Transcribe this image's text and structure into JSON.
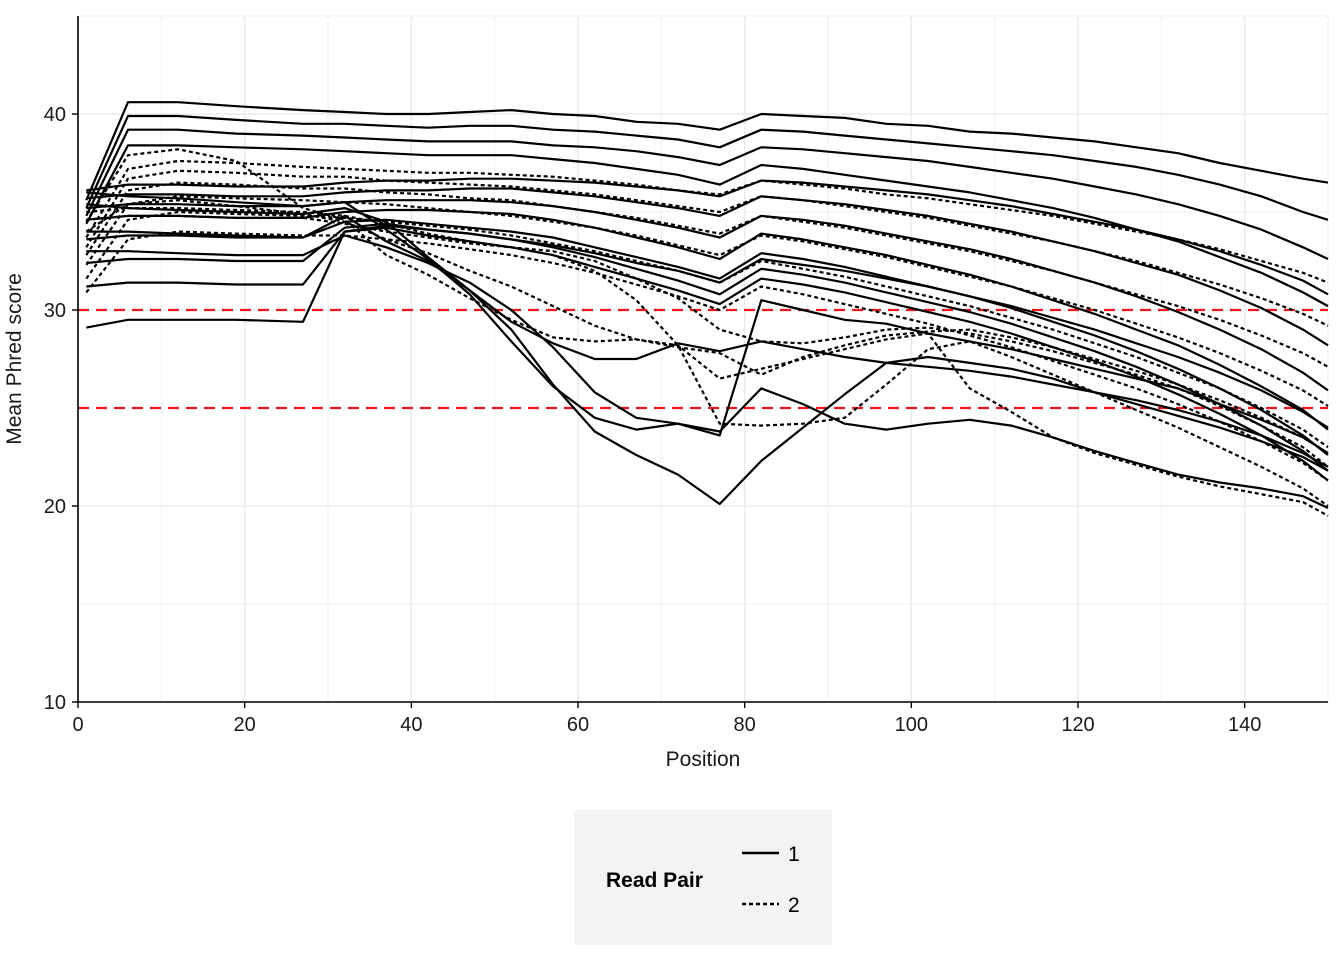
{
  "chart_data": {
    "type": "line",
    "title": "",
    "xlabel": "Position",
    "ylabel": "Mean Phred score",
    "xlim": [
      0,
      150
    ],
    "ylim": [
      10,
      45
    ],
    "x_ticks": [
      0,
      20,
      40,
      60,
      80,
      100,
      120,
      140
    ],
    "y_ticks": [
      10,
      20,
      30,
      40
    ],
    "grid": true,
    "legend": {
      "title": "Read Pair",
      "position": "bottom",
      "entries": [
        {
          "label": "1",
          "linestyle": "solid"
        },
        {
          "label": "2",
          "linestyle": "dashed"
        }
      ]
    },
    "reference_lines": [
      {
        "y": 30,
        "color": "#e8191c",
        "style": "dashed"
      },
      {
        "y": 25,
        "color": "#e8191c",
        "style": "dashed"
      }
    ],
    "x": [
      1,
      6,
      12,
      19,
      27,
      32,
      37,
      42,
      47,
      52,
      57,
      62,
      67,
      72,
      77,
      82,
      87,
      92,
      97,
      102,
      107,
      112,
      117,
      122,
      127,
      132,
      137,
      142,
      147,
      150
    ],
    "series": [
      {
        "read_pair": "1",
        "values": [
          35.6,
          40.6,
          40.6,
          40.4,
          40.2,
          40.1,
          40.0,
          40.0,
          40.1,
          40.2,
          40.0,
          39.9,
          39.6,
          39.5,
          39.2,
          40.0,
          39.9,
          39.8,
          39.5,
          39.4,
          39.1,
          39.0,
          38.8,
          38.6,
          38.3,
          38.0,
          37.5,
          37.1,
          36.7,
          36.5
        ]
      },
      {
        "read_pair": "1",
        "values": [
          35.2,
          39.9,
          39.9,
          39.7,
          39.5,
          39.5,
          39.4,
          39.3,
          39.4,
          39.4,
          39.2,
          39.1,
          38.9,
          38.7,
          38.3,
          39.2,
          39.1,
          38.9,
          38.7,
          38.5,
          38.3,
          38.1,
          37.9,
          37.6,
          37.3,
          36.9,
          36.4,
          35.8,
          35.0,
          34.6
        ]
      },
      {
        "read_pair": "1",
        "values": [
          34.8,
          39.2,
          39.2,
          39.0,
          38.9,
          38.8,
          38.7,
          38.6,
          38.6,
          38.6,
          38.4,
          38.3,
          38.1,
          37.8,
          37.4,
          38.3,
          38.2,
          38.0,
          37.8,
          37.6,
          37.3,
          37.0,
          36.7,
          36.3,
          35.9,
          35.4,
          34.8,
          34.1,
          33.2,
          32.6
        ]
      },
      {
        "read_pair": "1",
        "values": [
          34.4,
          38.4,
          38.4,
          38.3,
          38.2,
          38.1,
          38.0,
          37.9,
          37.9,
          37.9,
          37.7,
          37.5,
          37.2,
          36.9,
          36.4,
          37.4,
          37.2,
          36.9,
          36.6,
          36.3,
          36.0,
          35.6,
          35.2,
          34.7,
          34.1,
          33.5,
          32.7,
          31.9,
          30.9,
          30.2
        ]
      },
      {
        "read_pair": "1",
        "values": [
          36.1,
          36.4,
          36.4,
          36.3,
          36.3,
          36.5,
          36.6,
          36.6,
          36.7,
          36.7,
          36.6,
          36.5,
          36.3,
          36.1,
          35.8,
          36.6,
          36.5,
          36.3,
          36.1,
          35.9,
          35.6,
          35.3,
          34.9,
          34.5,
          34.1,
          33.6,
          33.0,
          32.3,
          31.5,
          30.8
        ]
      },
      {
        "read_pair": "1",
        "values": [
          35.7,
          35.9,
          35.9,
          35.8,
          35.8,
          36.0,
          36.1,
          36.1,
          36.2,
          36.2,
          36.0,
          35.8,
          35.5,
          35.2,
          34.8,
          35.8,
          35.6,
          35.4,
          35.1,
          34.8,
          34.4,
          34.0,
          33.5,
          33.0,
          32.4,
          31.8,
          31.0,
          30.1,
          29.0,
          28.2
        ]
      },
      {
        "read_pair": "1",
        "values": [
          35.2,
          35.4,
          35.4,
          35.3,
          35.3,
          35.5,
          35.6,
          35.6,
          35.6,
          35.5,
          35.3,
          35.0,
          34.6,
          34.2,
          33.7,
          34.8,
          34.6,
          34.3,
          33.9,
          33.5,
          33.1,
          32.6,
          32.0,
          31.4,
          30.7,
          29.9,
          29.0,
          28.0,
          26.8,
          25.9
        ]
      },
      {
        "read_pair": "1",
        "values": [
          34.6,
          34.8,
          34.8,
          34.7,
          34.7,
          35.0,
          35.1,
          35.1,
          35.0,
          34.9,
          34.6,
          34.2,
          33.7,
          33.2,
          32.6,
          33.9,
          33.6,
          33.2,
          32.8,
          32.3,
          31.8,
          31.2,
          30.5,
          29.8,
          29.0,
          28.2,
          27.2,
          26.1,
          24.9,
          23.9
        ]
      },
      {
        "read_pair": "1",
        "values": [
          33.6,
          33.8,
          33.8,
          33.7,
          33.7,
          34.5,
          34.6,
          34.4,
          34.2,
          34.0,
          33.7,
          33.2,
          32.7,
          32.2,
          31.6,
          32.9,
          32.6,
          32.2,
          31.7,
          31.2,
          30.7,
          30.1,
          29.4,
          28.7,
          27.9,
          27.0,
          26.0,
          24.9,
          23.6,
          22.6
        ]
      },
      {
        "read_pair": "1",
        "values": [
          32.4,
          32.6,
          32.6,
          32.5,
          32.5,
          34.2,
          34.4,
          34.1,
          33.9,
          33.6,
          33.2,
          32.7,
          32.1,
          31.5,
          30.8,
          32.1,
          31.8,
          31.4,
          30.9,
          30.4,
          29.9,
          29.3,
          28.6,
          27.9,
          27.1,
          26.2,
          25.2,
          24.1,
          22.8,
          21.8
        ]
      },
      {
        "read_pair": "1",
        "values": [
          31.2,
          31.4,
          31.4,
          31.3,
          31.3,
          34.0,
          34.2,
          33.8,
          33.5,
          33.2,
          32.8,
          32.2,
          31.6,
          31.0,
          30.3,
          31.6,
          31.3,
          30.9,
          30.4,
          29.9,
          29.4,
          28.8,
          28.1,
          27.4,
          26.6,
          25.7,
          24.7,
          23.6,
          22.3,
          21.3
        ]
      },
      {
        "read_pair": "1",
        "values": [
          29.1,
          29.5,
          29.5,
          29.5,
          29.4,
          34.0,
          34.3,
          34.1,
          33.9,
          33.6,
          33.3,
          32.9,
          32.4,
          32.0,
          31.4,
          32.6,
          32.3,
          32.0,
          31.6,
          31.2,
          30.7,
          30.2,
          29.6,
          29.0,
          28.3,
          27.6,
          26.8,
          25.9,
          24.8,
          24.0
        ]
      },
      {
        "read_pair": "1",
        "values": [
          36.0,
          35.8,
          35.7,
          35.5,
          35.3,
          35.5,
          34.1,
          32.6,
          30.8,
          28.4,
          26.1,
          24.5,
          23.9,
          24.2,
          23.6,
          30.5,
          30.0,
          29.5,
          29.3,
          28.8,
          28.4,
          28.0,
          27.5,
          27.0,
          26.5,
          26.0,
          25.2,
          24.4,
          23.5,
          22.7
        ]
      },
      {
        "read_pair": "1",
        "values": [
          35.4,
          35.2,
          35.1,
          35.0,
          34.9,
          35.2,
          34.5,
          32.7,
          31.0,
          29.0,
          26.2,
          23.8,
          22.6,
          21.6,
          20.1,
          22.3,
          24.0,
          25.7,
          27.3,
          27.6,
          27.3,
          27.0,
          26.5,
          25.8,
          25.2,
          24.6,
          24.0,
          23.3,
          22.5,
          21.8
        ]
      },
      {
        "read_pair": "1",
        "values": [
          34.0,
          34.0,
          33.9,
          33.8,
          33.7,
          34.8,
          33.5,
          32.5,
          31.0,
          29.4,
          28.3,
          27.5,
          27.5,
          28.3,
          27.9,
          28.4,
          28.0,
          27.6,
          27.3,
          27.1,
          26.9,
          26.6,
          26.2,
          25.8,
          25.4,
          24.9,
          24.3,
          23.6,
          22.7,
          22.0
        ]
      },
      {
        "read_pair": "1",
        "values": [
          33.0,
          33.0,
          32.9,
          32.8,
          32.8,
          33.8,
          33.2,
          32.4,
          31.4,
          30.0,
          28.1,
          25.8,
          24.5,
          24.2,
          23.8,
          26.0,
          25.2,
          24.2,
          23.9,
          24.2,
          24.4,
          24.1,
          23.5,
          22.8,
          22.2,
          21.6,
          21.2,
          20.9,
          20.5,
          19.9
        ]
      },
      {
        "read_pair": "2",
        "values": [
          33.7,
          37.2,
          37.6,
          37.5,
          37.3,
          37.2,
          37.1,
          37.0,
          37.0,
          36.9,
          36.8,
          36.6,
          36.4,
          36.1,
          35.9,
          36.6,
          36.4,
          36.2,
          35.9,
          35.7,
          35.4,
          35.1,
          34.8,
          34.4,
          34.0,
          33.6,
          33.1,
          32.5,
          31.9,
          31.4
        ]
      },
      {
        "read_pair": "2",
        "values": [
          33.2,
          36.7,
          37.1,
          37.0,
          36.8,
          36.8,
          36.6,
          36.5,
          36.4,
          36.3,
          36.1,
          35.9,
          35.6,
          35.3,
          35.0,
          35.8,
          35.6,
          35.3,
          35.0,
          34.7,
          34.3,
          33.9,
          33.5,
          33.0,
          32.5,
          31.9,
          31.3,
          30.6,
          29.8,
          29.2
        ]
      },
      {
        "read_pair": "2",
        "values": [
          32.8,
          36.1,
          36.5,
          36.4,
          36.2,
          36.2,
          36.0,
          35.9,
          35.7,
          35.6,
          35.3,
          35.0,
          34.7,
          34.3,
          33.9,
          34.8,
          34.5,
          34.2,
          33.8,
          33.4,
          33.0,
          32.5,
          32.0,
          31.4,
          30.8,
          30.2,
          29.5,
          28.7,
          27.8,
          27.1
        ]
      },
      {
        "read_pair": "2",
        "values": [
          32.3,
          35.4,
          35.8,
          35.7,
          35.6,
          35.5,
          35.4,
          35.2,
          35.0,
          34.8,
          34.5,
          34.2,
          33.8,
          33.3,
          32.8,
          33.8,
          33.5,
          33.1,
          32.7,
          32.2,
          31.7,
          31.2,
          30.6,
          30.0,
          29.3,
          28.6,
          27.8,
          26.9,
          25.9,
          25.1
        ]
      },
      {
        "read_pair": "2",
        "values": [
          31.6,
          34.6,
          35.0,
          34.9,
          34.8,
          34.7,
          34.5,
          34.3,
          34.1,
          33.8,
          33.4,
          33.0,
          32.5,
          32.0,
          31.4,
          32.5,
          32.1,
          31.7,
          31.2,
          30.7,
          30.2,
          29.6,
          29.0,
          28.3,
          27.6,
          26.8,
          26.0,
          25.0,
          23.9,
          23.0
        ]
      },
      {
        "read_pair": "2",
        "values": [
          30.9,
          33.6,
          34.0,
          33.9,
          33.8,
          33.8,
          33.6,
          33.4,
          33.1,
          32.8,
          32.4,
          31.9,
          31.3,
          30.7,
          30.0,
          31.2,
          30.8,
          30.3,
          29.8,
          29.3,
          28.7,
          28.1,
          27.4,
          26.7,
          26.0,
          25.2,
          24.3,
          23.3,
          22.2,
          21.3
        ]
      },
      {
        "read_pair": "2",
        "values": [
          34.5,
          37.9,
          38.2,
          37.6,
          35.2,
          34.6,
          32.8,
          31.8,
          30.6,
          29.5,
          28.6,
          28.4,
          28.5,
          28.1,
          27.8,
          26.7,
          27.6,
          28.2,
          28.7,
          28.9,
          29.0,
          28.6,
          28.1,
          27.5,
          26.9,
          26.2,
          25.4,
          24.5,
          23.5,
          22.7
        ]
      },
      {
        "read_pair": "2",
        "values": [
          34.0,
          35.4,
          35.6,
          35.3,
          34.9,
          34.5,
          33.6,
          32.9,
          32.0,
          31.2,
          30.2,
          29.2,
          28.5,
          28.2,
          26.5,
          27.0,
          27.5,
          28.0,
          28.5,
          28.8,
          26.0,
          24.8,
          23.5,
          22.7,
          22.1,
          21.5,
          21.0,
          20.6,
          20.2,
          19.5
        ]
      },
      {
        "read_pair": "2",
        "values": [
          35.0,
          35.2,
          35.2,
          35.1,
          35.0,
          34.8,
          34.4,
          33.9,
          33.5,
          33.2,
          32.8,
          32.0,
          30.5,
          28.2,
          24.2,
          24.1,
          24.2,
          24.5,
          26.2,
          28.0,
          28.4,
          27.6,
          26.7,
          25.8,
          24.9,
          24.0,
          23.0,
          22.0,
          20.9,
          20.0
        ]
      },
      {
        "read_pair": "2",
        "values": [
          34.6,
          34.8,
          34.8,
          34.7,
          34.7,
          34.4,
          34.0,
          33.7,
          33.4,
          33.2,
          33.0,
          32.5,
          31.6,
          30.6,
          29.0,
          28.4,
          28.3,
          28.6,
          29.0,
          29.1,
          28.8,
          28.4,
          27.9,
          27.3,
          26.7,
          26.0,
          25.1,
          24.1,
          23.0,
          22.0
        ]
      }
    ]
  }
}
